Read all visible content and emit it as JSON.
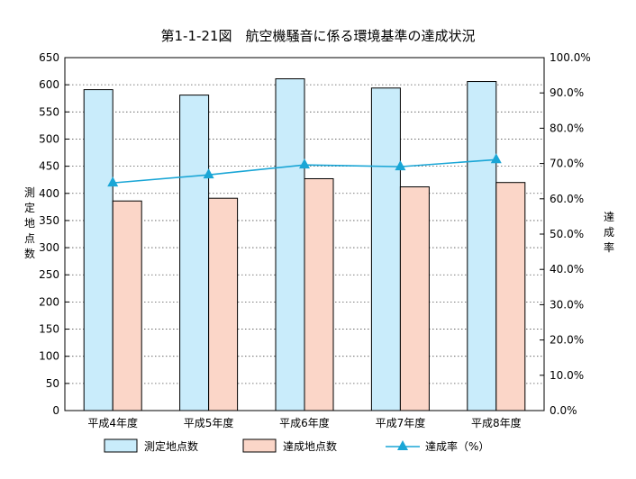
{
  "chart_data": {
    "type": "bar",
    "title": "第1-1-21図　航空機騒音に係る環境基準の達成状況",
    "categories": [
      "平成4年度",
      "平成5年度",
      "平成6年度",
      "平成7年度",
      "平成8年度"
    ],
    "series": [
      {
        "name": "測定地点数",
        "type": "bar",
        "axis": "left",
        "values": [
          591,
          581,
          611,
          594,
          606
        ],
        "color": "#c9ecfb"
      },
      {
        "name": "達成地点数",
        "type": "bar",
        "axis": "left",
        "values": [
          386,
          391,
          427,
          412,
          420
        ],
        "color": "#fbd6c8"
      },
      {
        "name": "達成率（%）",
        "type": "line",
        "axis": "right",
        "values": [
          64.5,
          66.8,
          69.6,
          69.1,
          71.1
        ],
        "color": "#1aa6d6",
        "marker": "triangle"
      }
    ],
    "y_left": {
      "label": "測定地点数",
      "range": [
        0,
        650
      ],
      "ticks": [
        "0",
        "50",
        "100",
        "150",
        "200",
        "250",
        "300",
        "350",
        "400",
        "450",
        "500",
        "550",
        "600",
        "650"
      ]
    },
    "y_right": {
      "label": "達成率",
      "range": [
        0,
        100
      ],
      "ticks": [
        "0.0%",
        "10.0%",
        "20.0%",
        "30.0%",
        "40.0%",
        "50.0%",
        "60.0%",
        "70.0%",
        "80.0%",
        "90.0%",
        "100.0%"
      ]
    },
    "grid": "horizontal dotted",
    "legend_position": "bottom"
  }
}
